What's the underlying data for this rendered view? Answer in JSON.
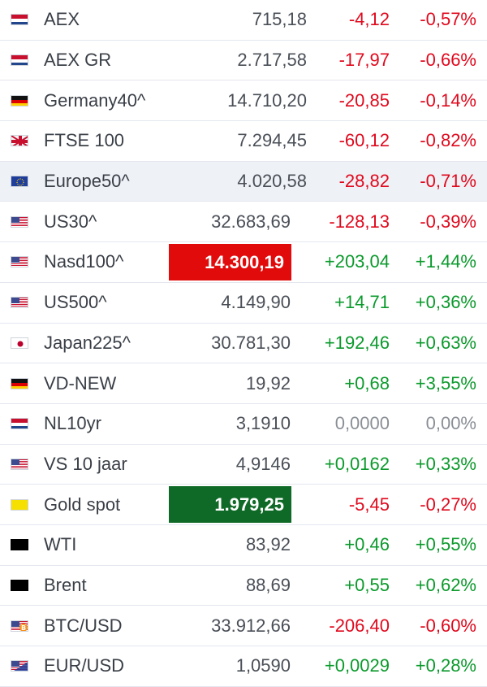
{
  "colors": {
    "negative": "#e0091d",
    "positive": "#0b9a2c",
    "neutral": "#8a8f96",
    "highlight_up_bg": "#0f6a27",
    "highlight_down_bg": "#e10b0b",
    "hover_row_bg": "#eef1f6"
  },
  "rows": [
    {
      "icon": "netherlands-flag-icon",
      "name": "AEX",
      "last": "715,18",
      "change": "-4,12",
      "percent": "-0,57%",
      "dir": "neg"
    },
    {
      "icon": "netherlands-flag-icon",
      "name": "AEX GR",
      "last": "2.717,58",
      "change": "-17,97",
      "percent": "-0,66%",
      "dir": "neg"
    },
    {
      "icon": "germany-flag-icon",
      "name": "Germany40^",
      "last": "14.710,20",
      "change": "-20,85",
      "percent": "-0,14%",
      "dir": "neg"
    },
    {
      "icon": "uk-flag-icon",
      "name": "FTSE 100",
      "last": "7.294,45",
      "change": "-60,12",
      "percent": "-0,82%",
      "dir": "neg"
    },
    {
      "icon": "eu-flag-icon",
      "name": "Europe50^",
      "last": "4.020,58",
      "change": "-28,82",
      "percent": "-0,71%",
      "dir": "neg",
      "highlighted": true
    },
    {
      "icon": "us-flag-icon",
      "name": "US30^",
      "last": "32.683,69",
      "change": "-128,13",
      "percent": "-0,39%",
      "dir": "neg"
    },
    {
      "icon": "us-flag-icon",
      "name": "Nasd100^",
      "last": "14.300,19",
      "change": "+203,04",
      "percent": "+1,44%",
      "dir": "pos",
      "flash": "down"
    },
    {
      "icon": "us-flag-icon",
      "name": "US500^",
      "last": "4.149,90",
      "change": "+14,71",
      "percent": "+0,36%",
      "dir": "pos"
    },
    {
      "icon": "japan-flag-icon",
      "name": "Japan225^",
      "last": "30.781,30",
      "change": "+192,46",
      "percent": "+0,63%",
      "dir": "pos"
    },
    {
      "icon": "germany-flag-icon",
      "name": "VD-NEW",
      "last": "19,92",
      "change": "+0,68",
      "percent": "+3,55%",
      "dir": "pos"
    },
    {
      "icon": "netherlands-flag-icon",
      "name": "NL10yr",
      "last": "3,1910",
      "change": "0,0000",
      "percent": "0,00%",
      "dir": "flat"
    },
    {
      "icon": "us-flag-icon",
      "name": "VS 10 jaar",
      "last": "4,9146",
      "change": "+0,0162",
      "percent": "+0,33%",
      "dir": "pos"
    },
    {
      "icon": "gold-swatch-icon",
      "name": "Gold spot",
      "last": "1.979,25",
      "change": "-5,45",
      "percent": "-0,27%",
      "dir": "neg",
      "flash": "up"
    },
    {
      "icon": "oil-barrel-icon",
      "name": "WTI",
      "last": "83,92",
      "change": "+0,46",
      "percent": "+0,55%",
      "dir": "pos"
    },
    {
      "icon": "oil-barrel-icon",
      "name": "Brent",
      "last": "88,69",
      "change": "+0,55",
      "percent": "+0,62%",
      "dir": "pos"
    },
    {
      "icon": "btc-usd-flag-icon",
      "name": "BTC/USD",
      "last": "33.912,66",
      "change": "-206,40",
      "percent": "-0,60%",
      "dir": "neg"
    },
    {
      "icon": "eur-usd-flag-icon",
      "name": "EUR/USD",
      "last": "1,0590",
      "change": "+0,0029",
      "percent": "+0,28%",
      "dir": "pos"
    }
  ]
}
